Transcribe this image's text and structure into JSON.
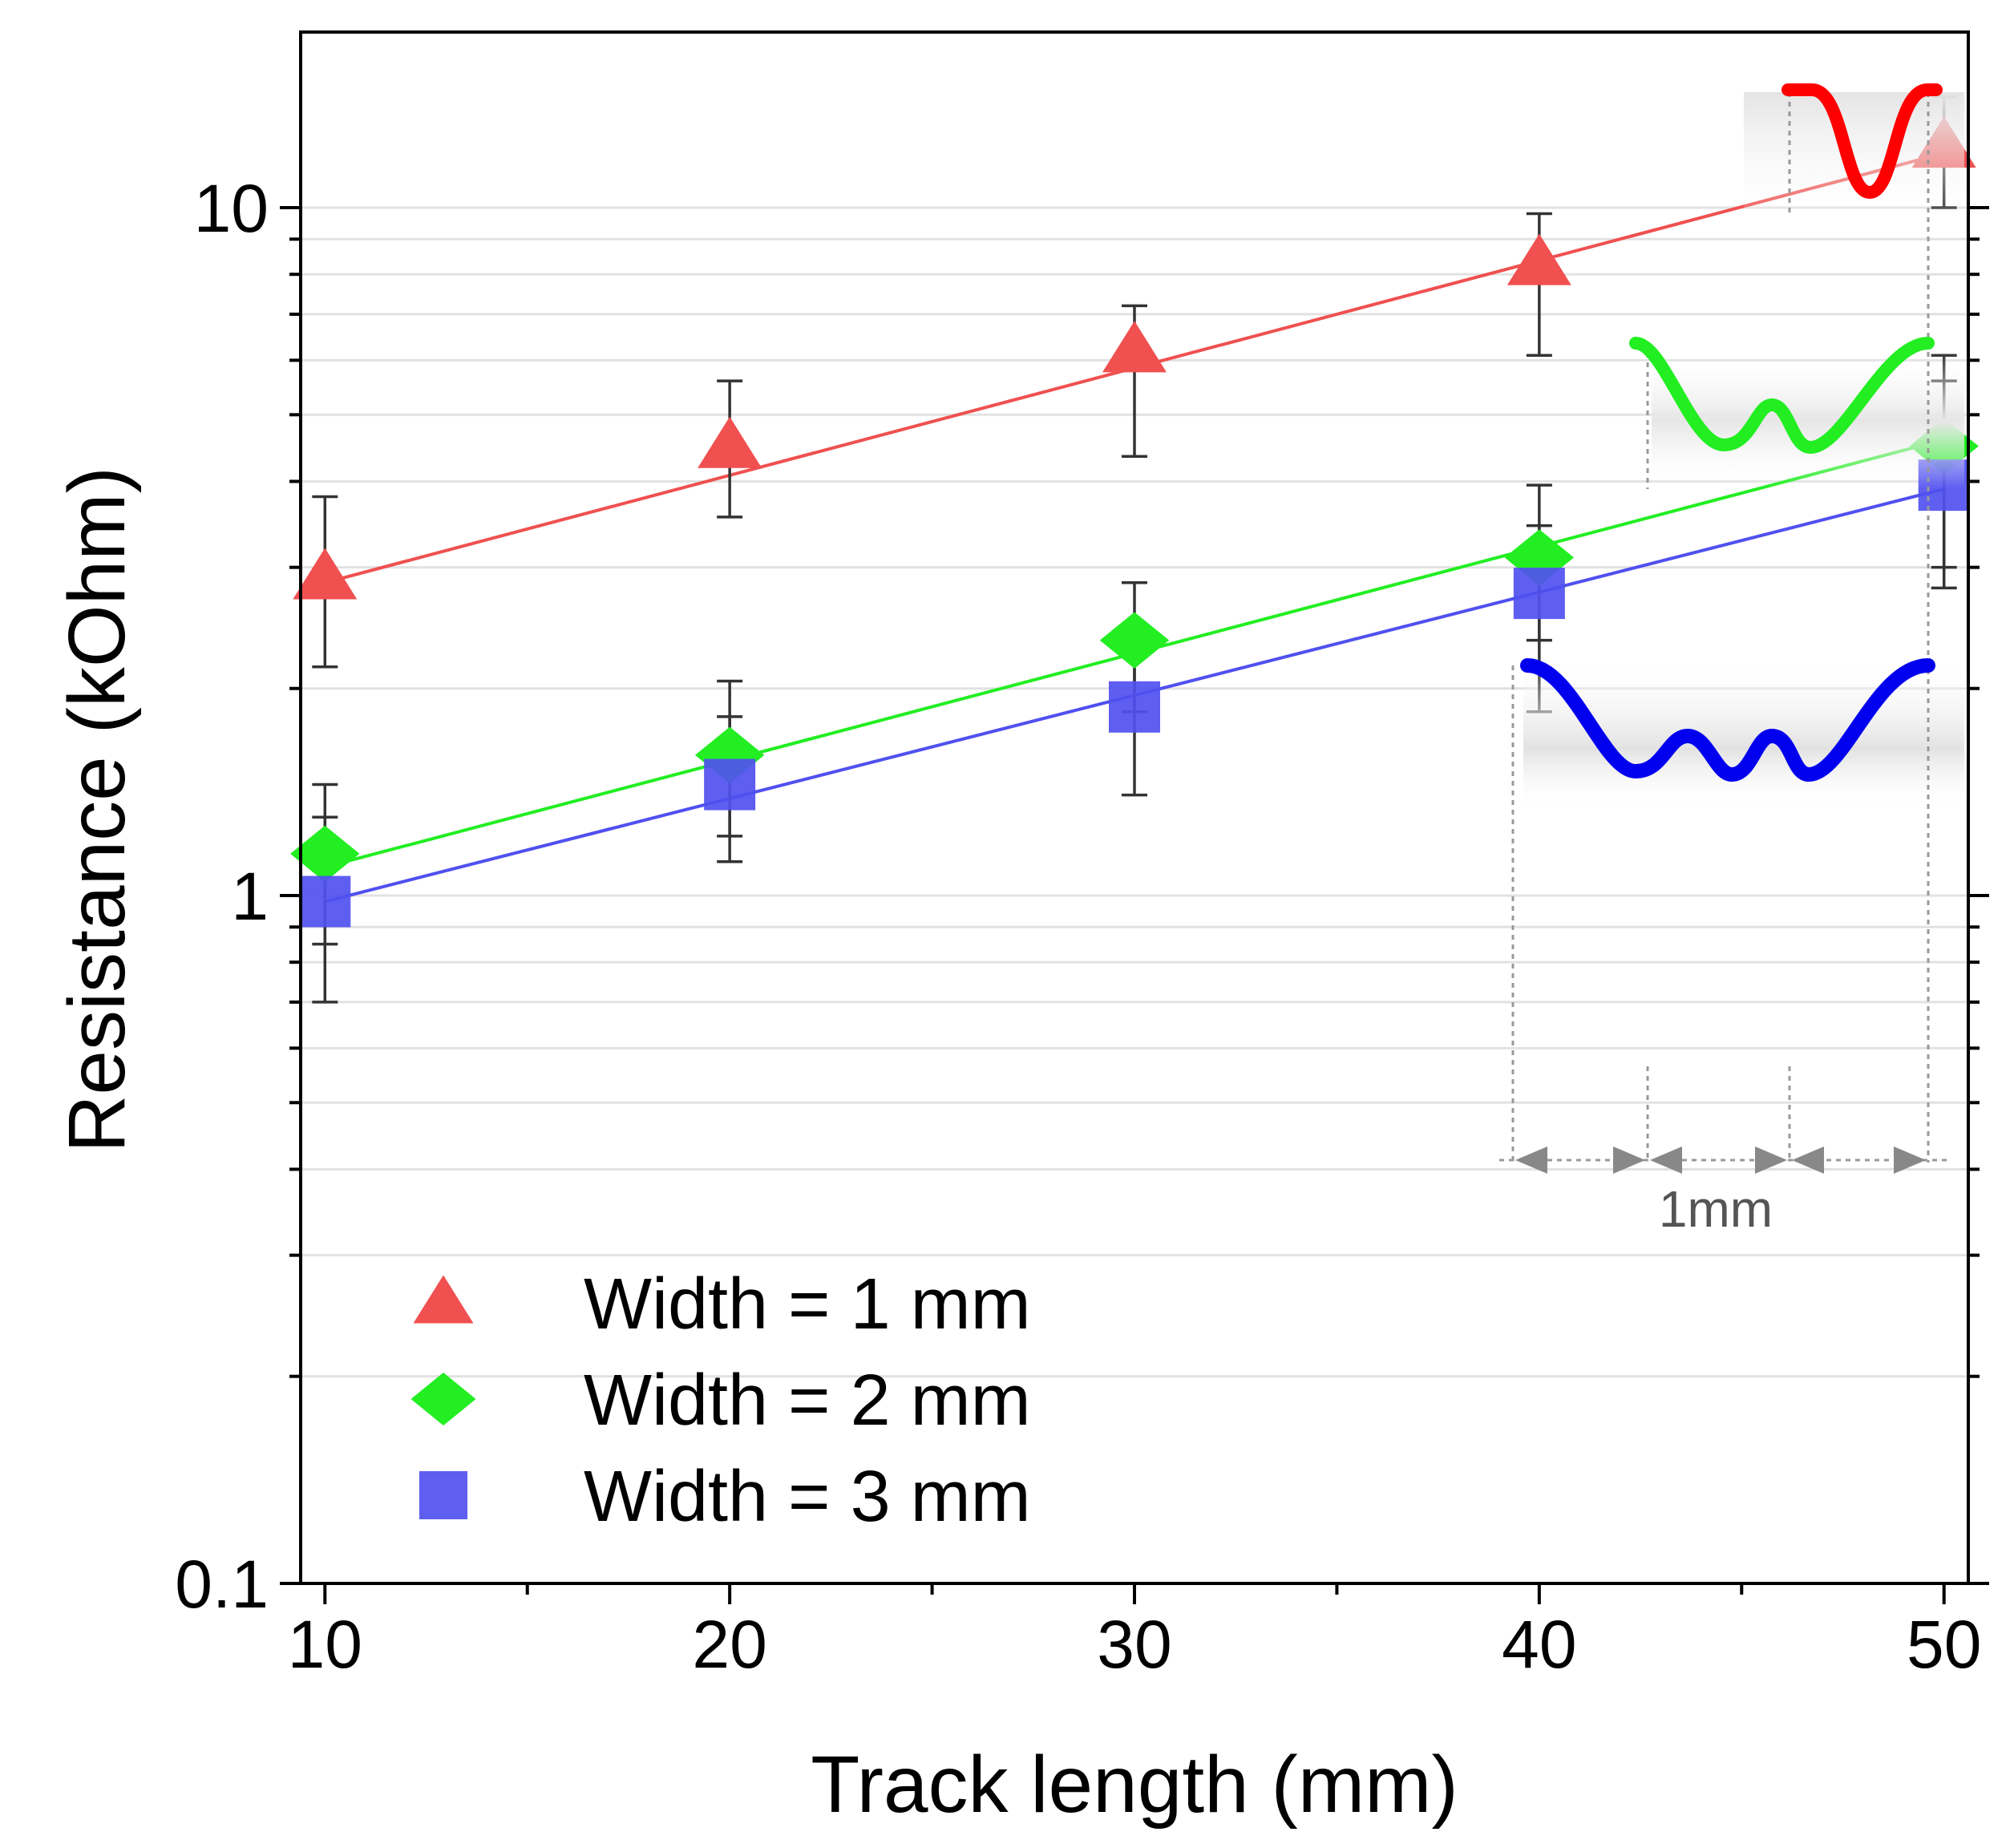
{
  "chart_data": {
    "type": "scatter",
    "title": "",
    "xlabel": "Track length (mm)",
    "ylabel": "Resistance (kOhm)",
    "yscale": "log",
    "xlim": [
      9.4,
      50.6
    ],
    "ylim": [
      0.1,
      18
    ],
    "x_ticks": [
      10,
      20,
      30,
      40,
      50
    ],
    "x_tick_labels": [
      "10",
      "20",
      "30",
      "40",
      "50"
    ],
    "y_ticks": [
      0.1,
      1,
      10
    ],
    "y_tick_labels": [
      "0.1",
      "1",
      "10"
    ],
    "grid": "horizontal log minor lines",
    "legend_position": "bottom-left",
    "series": [
      {
        "name": "Width = 1 mm",
        "marker": "triangle",
        "color": "#f05050",
        "x": [
          10,
          20,
          30,
          40,
          50
        ],
        "y": [
          2.9,
          4.5,
          6.2,
          8.3,
          12.3
        ],
        "err_low": [
          2.15,
          3.55,
          4.35,
          6.1,
          10.0
        ],
        "err_high": [
          3.8,
          5.6,
          7.2,
          9.8,
          14.5
        ],
        "fit": [
          2.85,
          12.0
        ]
      },
      {
        "name": "Width = 2 mm",
        "marker": "diamond",
        "color": "#22ee22",
        "x": [
          10,
          20,
          30,
          40,
          50
        ],
        "y": [
          1.15,
          1.6,
          2.35,
          3.1,
          4.5
        ],
        "err_low": [
          0.85,
          1.22,
          1.85,
          2.35,
          3.0
        ],
        "err_high": [
          1.45,
          2.05,
          2.85,
          3.95,
          6.1
        ],
        "fit": [
          1.1,
          4.6
        ]
      },
      {
        "name": "Width = 3 mm",
        "marker": "square",
        "color": "#5050f0",
        "x": [
          10,
          20,
          30,
          40,
          50
        ],
        "y": [
          0.98,
          1.45,
          1.88,
          2.75,
          3.95
        ],
        "err_low": [
          0.7,
          1.12,
          1.4,
          1.85,
          2.8
        ],
        "err_high": [
          1.3,
          1.82,
          2.4,
          3.45,
          5.6
        ],
        "fit": [
          0.98,
          3.9
        ]
      }
    ],
    "annotations": [
      {
        "text": "1mm",
        "kind": "dimension-arrow-label"
      }
    ],
    "insets": [
      {
        "name": "track-shape-width-1",
        "color": "#ff0000",
        "shape": "single-meander"
      },
      {
        "name": "track-shape-width-2",
        "color": "#22ee22",
        "shape": "double-meander"
      },
      {
        "name": "track-shape-width-3",
        "color": "#0000ee",
        "shape": "triple-meander"
      }
    ]
  }
}
